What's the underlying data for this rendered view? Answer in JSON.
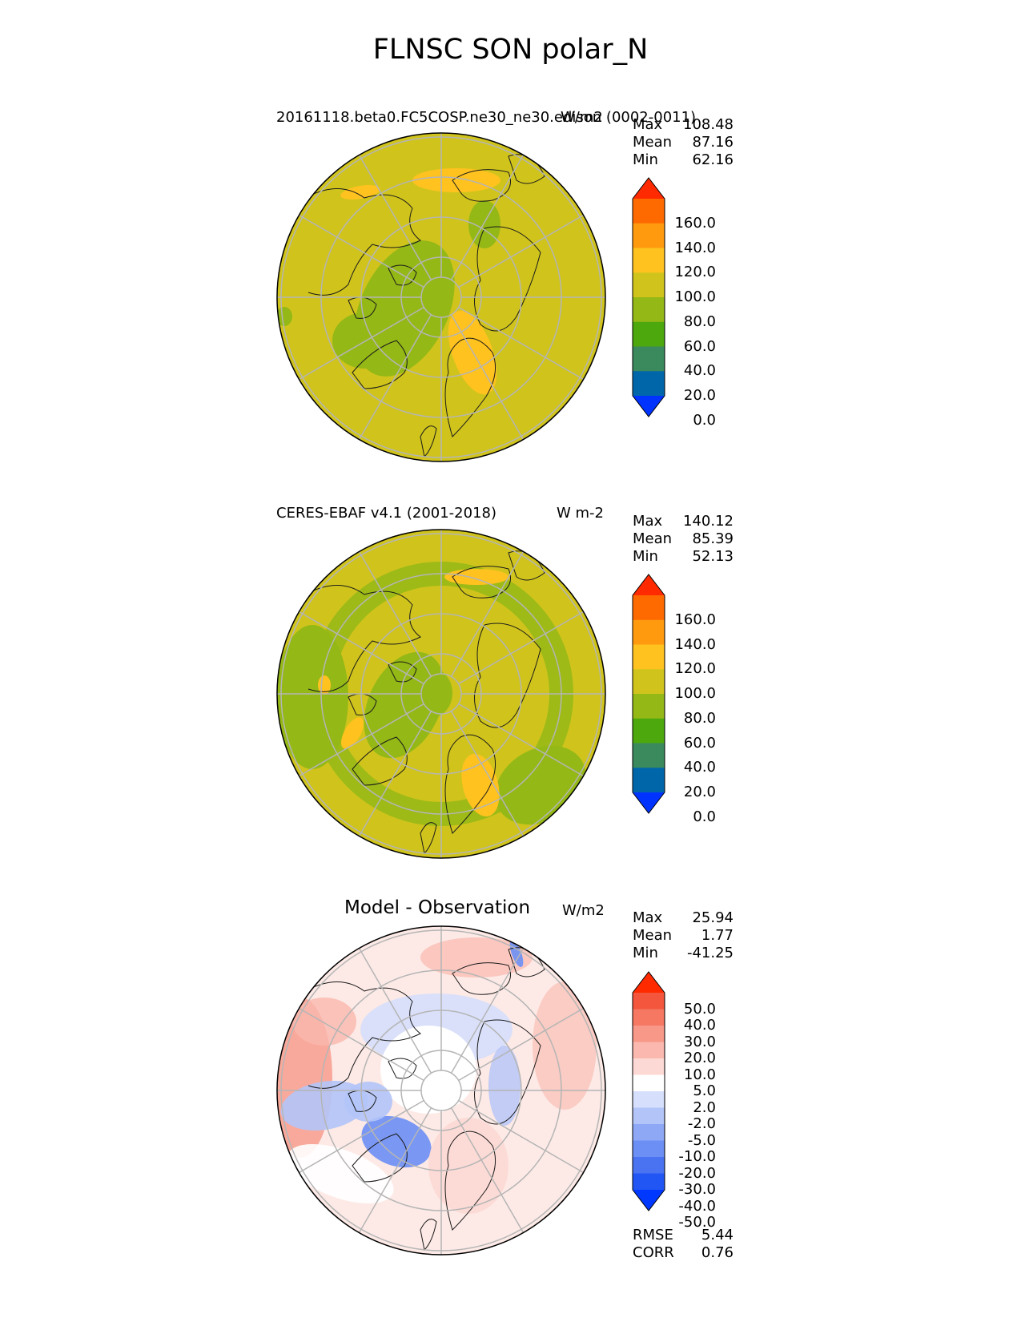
{
  "title": "FLNSC SON polar_N",
  "colors": {
    "levels_abs": [
      "#0033ff",
      "#0066aa",
      "#3b8a5e",
      "#4da80e",
      "#94b816",
      "#d0c41c",
      "#ffc21f",
      "#ff9a0f",
      "#ff6a00",
      "#ff2a00"
    ],
    "levels_diff": [
      "#0038ff",
      "#2156f5",
      "#4a73f2",
      "#6b8ff4",
      "#8ea8f6",
      "#b3c4f8",
      "#d6dffb",
      "#ffffff",
      "#fcd9d4",
      "#fab8ae",
      "#f89888",
      "#f67762",
      "#f3563d",
      "#ff2a00"
    ]
  },
  "chart_data": [
    {
      "type": "heatmap",
      "projection": "north-polar-stereographic",
      "title": "20161118.beta0.FC5COSP.ne30_ne30.edison (0002-0011)",
      "units": "W/m2",
      "stats": [
        {
          "label": "Max",
          "value": "108.48"
        },
        {
          "label": "Mean",
          "value": "87.16"
        },
        {
          "label": "Min",
          "value": "62.16"
        }
      ],
      "colorbar_ticks": [
        "160.0",
        "140.0",
        "120.0",
        "100.0",
        "80.0",
        "60.0",
        "40.0",
        "20.0",
        "0.0"
      ],
      "colorbar_levels": [
        0,
        20,
        40,
        60,
        80,
        100,
        120,
        140,
        160
      ]
    },
    {
      "type": "heatmap",
      "projection": "north-polar-stereographic",
      "title": "CERES-EBAF v4.1 (2001-2018)",
      "units": "W m-2",
      "stats": [
        {
          "label": "Max",
          "value": "140.12"
        },
        {
          "label": "Mean",
          "value": "85.39"
        },
        {
          "label": "Min",
          "value": "52.13"
        }
      ],
      "colorbar_ticks": [
        "160.0",
        "140.0",
        "120.0",
        "100.0",
        "80.0",
        "60.0",
        "40.0",
        "20.0",
        "0.0"
      ],
      "colorbar_levels": [
        0,
        20,
        40,
        60,
        80,
        100,
        120,
        140,
        160
      ]
    },
    {
      "type": "heatmap",
      "projection": "north-polar-stereographic",
      "title": "Model - Observation",
      "units": "W/m2",
      "stats": [
        {
          "label": "Max",
          "value": "25.94"
        },
        {
          "label": "Mean",
          "value": "1.77"
        },
        {
          "label": "Min",
          "value": "-41.25"
        }
      ],
      "extra_stats": [
        {
          "label": "RMSE",
          "value": "5.44"
        },
        {
          "label": "CORR",
          "value": "0.76"
        }
      ],
      "colorbar_ticks": [
        "50.0",
        "40.0",
        "30.0",
        "20.0",
        "10.0",
        "5.0",
        "2.0",
        "-2.0",
        "-5.0",
        "-10.0",
        "-20.0",
        "-30.0",
        "-40.0",
        "-50.0"
      ],
      "colorbar_levels": [
        -50,
        -40,
        -30,
        -20,
        -10,
        -5,
        -2,
        2,
        5,
        10,
        20,
        30,
        40,
        50
      ]
    }
  ]
}
